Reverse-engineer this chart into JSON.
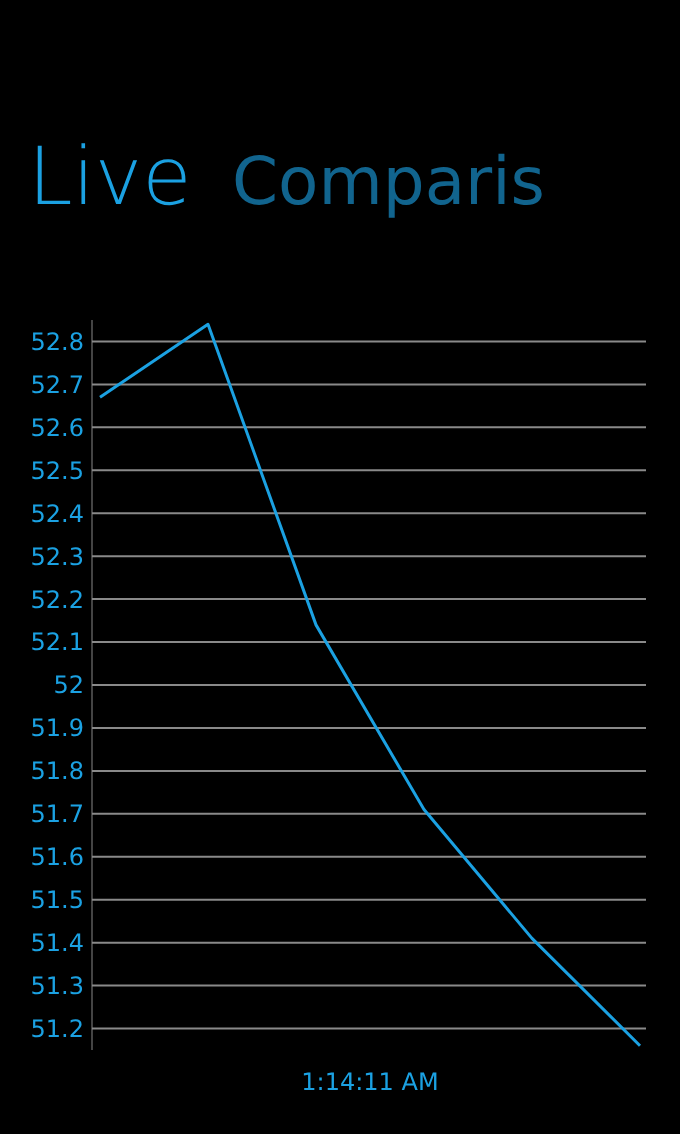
{
  "chart_data": {
    "type": "line",
    "title": "Live",
    "subtitle": "Comparis",
    "xlabel": "1:14:11 AM",
    "categories": [
      null,
      null,
      null,
      null,
      null,
      null
    ],
    "series": [
      {
        "color": "#1ba1e2",
        "values": [
          52.67,
          52.84,
          52.14,
          51.71,
          51.41,
          51.16
        ]
      }
    ],
    "ylim": [
      51.15,
      52.85
    ],
    "yticks": [
      {
        "value": 51.2,
        "label": "51.2"
      },
      {
        "value": 51.3,
        "label": "51.3"
      },
      {
        "value": 51.4,
        "label": "51.4"
      },
      {
        "value": 51.5,
        "label": "51.5"
      },
      {
        "value": 51.6,
        "label": "51.6"
      },
      {
        "value": 51.7,
        "label": "51.7"
      },
      {
        "value": 51.8,
        "label": "51.8"
      },
      {
        "value": 51.9,
        "label": "51.9"
      },
      {
        "value": 52,
        "label": "52"
      },
      {
        "value": 52.1,
        "label": "52.1"
      },
      {
        "value": 52.2,
        "label": "52.2"
      },
      {
        "value": 52.3,
        "label": "52.3"
      },
      {
        "value": 52.4,
        "label": "52.4"
      },
      {
        "value": 52.5,
        "label": "52.5"
      },
      {
        "value": 52.6,
        "label": "52.6"
      },
      {
        "value": 52.7,
        "label": "52.7"
      },
      {
        "value": 52.8,
        "label": "52.8"
      }
    ],
    "grid": "y",
    "marker": "none",
    "line_style": "solid"
  }
}
